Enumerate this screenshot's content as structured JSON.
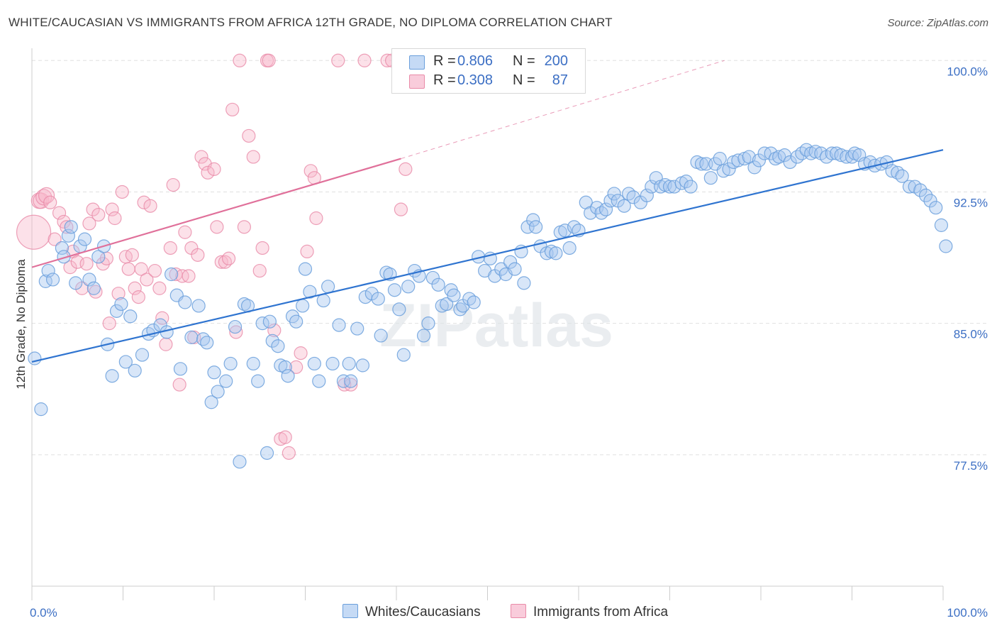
{
  "title": "WHITE/CAUCASIAN VS IMMIGRANTS FROM AFRICA 12TH GRADE, NO DIPLOMA CORRELATION CHART",
  "source": "Source: ZipAtlas.com",
  "watermark": "ZIPatlas",
  "colors": {
    "blue_fill": "#a9c8f0",
    "blue_stroke": "#6a9fdc",
    "blue_line": "#2f74d0",
    "pink_fill": "#f7b8cb",
    "pink_stroke": "#e98aa8",
    "pink_line": "#e0709a",
    "tick_label": "#3c6fc4",
    "grid": "#e0e0e0"
  },
  "legend": {
    "rows": [
      {
        "r_label": "R =",
        "r_value": "0.806",
        "n_label": "N =",
        "n_value": "200"
      },
      {
        "r_label": "R =",
        "r_value": "0.308",
        "n_label": "N =",
        "n_value": "87"
      }
    ]
  },
  "bottom_legend": {
    "series1": "Whites/Caucasians",
    "series2": "Immigrants from Africa"
  },
  "chart_data": {
    "type": "scatter",
    "title": "WHITE/CAUCASIAN VS IMMIGRANTS FROM AFRICA 12TH GRADE, NO DIPLOMA CORRELATION CHART",
    "xlabel": "",
    "ylabel": "12th Grade, No Diploma",
    "xlim": [
      0,
      100
    ],
    "ylim": [
      70,
      100.7
    ],
    "x_tick_labels": [
      "0.0%",
      "100.0%"
    ],
    "y_ticks": [
      77.5,
      85.0,
      92.5,
      100.0
    ],
    "y_tick_labels": [
      "77.5%",
      "85.0%",
      "92.5%",
      "100.0%"
    ],
    "grid": true,
    "legend_position": "top-center",
    "series": [
      {
        "name": "Whites/Caucasians",
        "r": 0.806,
        "n": 200,
        "trend": {
          "x": [
            0,
            100
          ],
          "y": [
            82.8,
            94.9
          ]
        },
        "points": [
          [
            0.3,
            83
          ],
          [
            1,
            80.1
          ],
          [
            1.5,
            87.4
          ],
          [
            1.8,
            88
          ],
          [
            2.3,
            87.5
          ],
          [
            3.3,
            89.3
          ],
          [
            3.5,
            88.8
          ],
          [
            4,
            90
          ],
          [
            4.3,
            90.5
          ],
          [
            4.8,
            87.3
          ],
          [
            5.3,
            89.4
          ],
          [
            5.8,
            89.8
          ],
          [
            6.3,
            87.5
          ],
          [
            6.8,
            87
          ],
          [
            7.3,
            88.8
          ],
          [
            7.9,
            89.4
          ],
          [
            8.3,
            83.8
          ],
          [
            8.8,
            82
          ],
          [
            9.3,
            85.7
          ],
          [
            9.8,
            86.1
          ],
          [
            10.3,
            82.8
          ],
          [
            10.8,
            85.4
          ],
          [
            11.3,
            82.3
          ],
          [
            12.1,
            83.2
          ],
          [
            12.8,
            84.4
          ],
          [
            13.3,
            84.6
          ],
          [
            14.1,
            84.9
          ],
          [
            14.8,
            84.5
          ],
          [
            15.3,
            87.8
          ],
          [
            15.9,
            86.6
          ],
          [
            16.3,
            82.4
          ],
          [
            16.8,
            86.2
          ],
          [
            17.5,
            84.2
          ],
          [
            18.3,
            86
          ],
          [
            18.8,
            84.1
          ],
          [
            19.2,
            83.9
          ],
          [
            19.7,
            80.5
          ],
          [
            20,
            82.2
          ],
          [
            20.4,
            81.1
          ],
          [
            21.3,
            81.7
          ],
          [
            21.8,
            82.7
          ],
          [
            22.3,
            84.8
          ],
          [
            22.8,
            77.1
          ],
          [
            23.3,
            86.1
          ],
          [
            23.7,
            86
          ],
          [
            24.3,
            82.7
          ],
          [
            24.8,
            81.7
          ],
          [
            25.3,
            85
          ],
          [
            25.8,
            77.6
          ],
          [
            26.1,
            85.1
          ],
          [
            26.4,
            84
          ],
          [
            27,
            83.7
          ],
          [
            27.3,
            82.6
          ],
          [
            27.8,
            82.5
          ],
          [
            28.1,
            82
          ],
          [
            28.6,
            85.4
          ],
          [
            29,
            85.1
          ],
          [
            29.7,
            86
          ],
          [
            30,
            88.1
          ],
          [
            30.5,
            86.8
          ],
          [
            31,
            82.7
          ],
          [
            31.5,
            81.7
          ],
          [
            32,
            86.3
          ],
          [
            32.5,
            87.1
          ],
          [
            33,
            82.7
          ],
          [
            33.7,
            84.9
          ],
          [
            34.2,
            81.7
          ],
          [
            34.8,
            82.7
          ],
          [
            35,
            81.7
          ],
          [
            35.7,
            84.7
          ],
          [
            36.3,
            82.6
          ],
          [
            36.6,
            86.5
          ],
          [
            37.3,
            86.7
          ],
          [
            38,
            86.4
          ],
          [
            38.3,
            84.3
          ],
          [
            38.9,
            87.9
          ],
          [
            39.3,
            87.8
          ],
          [
            39.8,
            86.9
          ],
          [
            40.3,
            85.8
          ],
          [
            40.8,
            83.2
          ],
          [
            41.3,
            87.1
          ],
          [
            42,
            88
          ],
          [
            42.5,
            87.7
          ],
          [
            43,
            84.3
          ],
          [
            43.5,
            85
          ],
          [
            44,
            87.6
          ],
          [
            44.6,
            87.2
          ],
          [
            45,
            86
          ],
          [
            45.5,
            86.1
          ],
          [
            46,
            86.9
          ],
          [
            46.3,
            86.6
          ],
          [
            47,
            85.8
          ],
          [
            47.3,
            86
          ],
          [
            48,
            86.4
          ],
          [
            48.5,
            86.2
          ],
          [
            49,
            88.8
          ],
          [
            49.7,
            88
          ],
          [
            50.3,
            88.7
          ],
          [
            50.8,
            87.7
          ],
          [
            51.5,
            88.1
          ],
          [
            52,
            87.8
          ],
          [
            52.5,
            88.5
          ],
          [
            53,
            88.1
          ],
          [
            53.7,
            89.1
          ],
          [
            54,
            87.3
          ],
          [
            54.4,
            90.5
          ],
          [
            55,
            90.9
          ],
          [
            55.3,
            90.5
          ],
          [
            55.8,
            89.4
          ],
          [
            56.5,
            89
          ],
          [
            57,
            89.1
          ],
          [
            57.5,
            89
          ],
          [
            58,
            90.2
          ],
          [
            58.5,
            90.3
          ],
          [
            59,
            89.3
          ],
          [
            59.5,
            90.5
          ],
          [
            60,
            90.3
          ],
          [
            60.8,
            91.9
          ],
          [
            61.3,
            91.3
          ],
          [
            62,
            91.6
          ],
          [
            62.5,
            91.3
          ],
          [
            63,
            91.5
          ],
          [
            63.5,
            92
          ],
          [
            63.9,
            92.4
          ],
          [
            64.3,
            92
          ],
          [
            65,
            91.7
          ],
          [
            65.5,
            92.4
          ],
          [
            66,
            92.2
          ],
          [
            66.8,
            91.9
          ],
          [
            67.5,
            92.3
          ],
          [
            68,
            92.8
          ],
          [
            68.5,
            93.3
          ],
          [
            69,
            92.8
          ],
          [
            69.5,
            92.9
          ],
          [
            70,
            92.8
          ],
          [
            70.5,
            92.8
          ],
          [
            71.3,
            93
          ],
          [
            71.8,
            93.1
          ],
          [
            72.3,
            92.8
          ],
          [
            73,
            94.2
          ],
          [
            73.5,
            94.1
          ],
          [
            74,
            94.1
          ],
          [
            74.5,
            93.3
          ],
          [
            75,
            94.1
          ],
          [
            75.5,
            94.4
          ],
          [
            75.9,
            93.7
          ],
          [
            76.5,
            93.8
          ],
          [
            77,
            94.2
          ],
          [
            77.5,
            94.3
          ],
          [
            78.2,
            94.4
          ],
          [
            78.7,
            94.5
          ],
          [
            79.3,
            93.9
          ],
          [
            79.8,
            94.3
          ],
          [
            80.4,
            94.7
          ],
          [
            81.1,
            94.7
          ],
          [
            81.6,
            94.4
          ],
          [
            82,
            94.5
          ],
          [
            82.6,
            94.6
          ],
          [
            83.2,
            94.2
          ],
          [
            84,
            94.5
          ],
          [
            84.5,
            94.7
          ],
          [
            85,
            94.9
          ],
          [
            85.5,
            94.7
          ],
          [
            86,
            94.8
          ],
          [
            86.6,
            94.7
          ],
          [
            87.2,
            94.5
          ],
          [
            87.8,
            94.7
          ],
          [
            88.3,
            94.7
          ],
          [
            88.8,
            94.6
          ],
          [
            89.4,
            94.5
          ],
          [
            90,
            94.5
          ],
          [
            90.3,
            94.7
          ],
          [
            90.8,
            94.6
          ],
          [
            91.4,
            94.1
          ],
          [
            92,
            94.2
          ],
          [
            92.5,
            94
          ],
          [
            93.2,
            94.1
          ],
          [
            93.8,
            94.2
          ],
          [
            94.4,
            93.7
          ],
          [
            95,
            93.6
          ],
          [
            95.5,
            93.4
          ],
          [
            96.3,
            92.8
          ],
          [
            96.9,
            92.8
          ],
          [
            97.5,
            92.6
          ],
          [
            98.1,
            92.3
          ],
          [
            98.6,
            92
          ],
          [
            99.2,
            91.6
          ],
          [
            99.8,
            90.6
          ],
          [
            100.3,
            89.4
          ]
        ]
      },
      {
        "name": "Immigrants from Africa",
        "r": 0.308,
        "n": 87,
        "trend": {
          "x": [
            0,
            40.5
          ],
          "y": [
            88.2,
            94.4
          ]
        },
        "trend_extension": {
          "x": [
            40.5,
            76
          ],
          "y": [
            94.4,
            100
          ]
        },
        "points": [
          [
            0.2,
            90.2
          ],
          [
            0.8,
            92
          ],
          [
            1,
            92
          ],
          [
            1.3,
            92.2
          ],
          [
            1.6,
            92.3
          ],
          [
            2,
            91.9
          ],
          [
            2.5,
            89.8
          ],
          [
            3,
            91.3
          ],
          [
            3.5,
            90.8
          ],
          [
            3.8,
            90.5
          ],
          [
            4.2,
            88.2
          ],
          [
            4.5,
            89.1
          ],
          [
            5,
            88.5
          ],
          [
            5.5,
            87
          ],
          [
            6,
            88.4
          ],
          [
            6.3,
            90.7
          ],
          [
            6.7,
            91.5
          ],
          [
            7,
            86.8
          ],
          [
            7.3,
            91.2
          ],
          [
            7.8,
            88.4
          ],
          [
            8.2,
            88.7
          ],
          [
            8.5,
            85
          ],
          [
            8.8,
            91.5
          ],
          [
            9.1,
            91
          ],
          [
            9.5,
            86.7
          ],
          [
            9.9,
            92.5
          ],
          [
            10.3,
            88.8
          ],
          [
            10.6,
            88.1
          ],
          [
            11,
            88.9
          ],
          [
            11.3,
            87
          ],
          [
            11.7,
            86.5
          ],
          [
            12,
            88.1
          ],
          [
            12.3,
            91.9
          ],
          [
            12.6,
            87.5
          ],
          [
            13,
            91.7
          ],
          [
            13.5,
            88
          ],
          [
            14,
            87
          ],
          [
            14.3,
            85.3
          ],
          [
            14.7,
            83.8
          ],
          [
            15.2,
            89.3
          ],
          [
            15.5,
            92.9
          ],
          [
            15.8,
            87.8
          ],
          [
            16.2,
            81.5
          ],
          [
            16.5,
            87.7
          ],
          [
            16.8,
            90.2
          ],
          [
            17.2,
            87.7
          ],
          [
            17.5,
            89.3
          ],
          [
            17.8,
            84.2
          ],
          [
            18.2,
            88.9
          ],
          [
            18.6,
            94.5
          ],
          [
            19,
            94.1
          ],
          [
            19.3,
            93.6
          ],
          [
            20,
            93.8
          ],
          [
            20.3,
            90.5
          ],
          [
            20.8,
            88.5
          ],
          [
            21.2,
            88.5
          ],
          [
            21.6,
            88.7
          ],
          [
            22,
            97.2
          ],
          [
            22.4,
            84.5
          ],
          [
            22.8,
            100
          ],
          [
            23.3,
            90.5
          ],
          [
            23.8,
            95.7
          ],
          [
            24.3,
            94.5
          ],
          [
            25,
            88
          ],
          [
            25.3,
            89.3
          ],
          [
            25.8,
            100
          ],
          [
            26,
            100
          ],
          [
            26.6,
            84.6
          ],
          [
            27.3,
            78.4
          ],
          [
            27.8,
            78.5
          ],
          [
            28.2,
            77.6
          ],
          [
            29,
            82.5
          ],
          [
            29.5,
            83.3
          ],
          [
            30.2,
            89.1
          ],
          [
            30.6,
            93.7
          ],
          [
            31,
            93.3
          ],
          [
            31.2,
            91
          ],
          [
            33.6,
            100
          ],
          [
            34.3,
            81.5
          ],
          [
            35,
            81.5
          ],
          [
            36.5,
            100
          ],
          [
            39,
            100
          ],
          [
            39.5,
            100
          ],
          [
            40.5,
            91.5
          ],
          [
            41,
            93.8
          ]
        ]
      }
    ]
  }
}
